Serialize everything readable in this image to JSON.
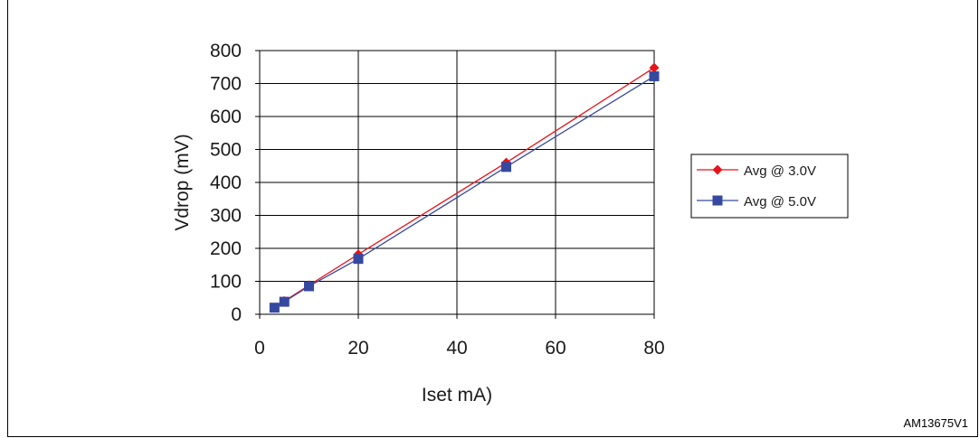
{
  "figure_id": "AM13675V1",
  "chart_data": {
    "type": "line",
    "xlabel": "Iset mA)",
    "ylabel": "Vdrop (mV)",
    "xlim": [
      0,
      80
    ],
    "ylim": [
      0,
      800
    ],
    "x_ticks": [
      0,
      20,
      40,
      60,
      80
    ],
    "y_ticks": [
      0,
      100,
      200,
      300,
      400,
      500,
      600,
      700,
      800
    ],
    "grid": true,
    "legend_position": "right",
    "series": [
      {
        "name": "Avg @ 3.0V",
        "color": "#e8141b",
        "marker": "diamond",
        "points": [
          [
            3,
            20
          ],
          [
            5,
            40
          ],
          [
            10,
            88
          ],
          [
            20,
            182
          ],
          [
            50,
            460
          ],
          [
            80,
            748
          ]
        ]
      },
      {
        "name": "Avg @ 5.0V",
        "color": "#3649a0",
        "marker": "square",
        "points": [
          [
            3,
            20
          ],
          [
            5,
            38
          ],
          [
            10,
            85
          ],
          [
            20,
            168
          ],
          [
            50,
            447
          ],
          [
            80,
            722
          ]
        ]
      }
    ]
  }
}
